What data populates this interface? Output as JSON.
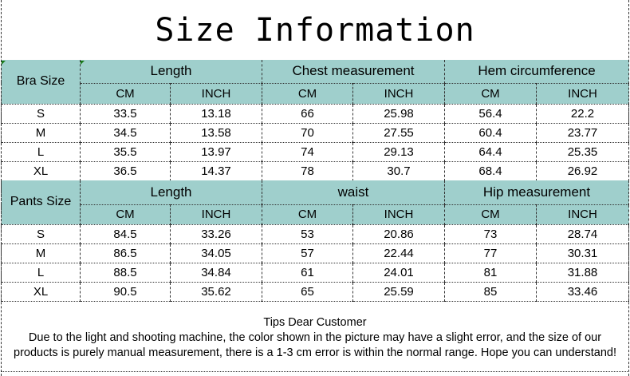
{
  "title": "Size Information",
  "tables": [
    {
      "size_label": "Bra Size",
      "groups": [
        "Length",
        "Chest measurement",
        "Hem circumference"
      ],
      "units": [
        "CM",
        "INCH",
        "CM",
        "INCH",
        "CM",
        "INCH"
      ],
      "rows": [
        [
          "S",
          "33.5",
          "13.18",
          "66",
          "25.98",
          "56.4",
          "22.2"
        ],
        [
          "M",
          "34.5",
          "13.58",
          "70",
          "27.55",
          "60.4",
          "23.77"
        ],
        [
          "L",
          "35.5",
          "13.97",
          "74",
          "29.13",
          "64.4",
          "25.35"
        ],
        [
          "XL",
          "36.5",
          "14.37",
          "78",
          "30.7",
          "68.4",
          "26.92"
        ]
      ]
    },
    {
      "size_label": "Pants Size",
      "groups": [
        "Length",
        "waist",
        "Hip measurement"
      ],
      "units": [
        "CM",
        "INCH",
        "CM",
        "INCH",
        "CM",
        "INCH"
      ],
      "rows": [
        [
          "S",
          "84.5",
          "33.26",
          "53",
          "20.86",
          "73",
          "28.74"
        ],
        [
          "M",
          "86.5",
          "34.05",
          "57",
          "22.44",
          "77",
          "30.31"
        ],
        [
          "L",
          "88.5",
          "34.84",
          "61",
          "24.01",
          "81",
          "31.88"
        ],
        [
          "XL",
          "90.5",
          "35.62",
          "65",
          "25.59",
          "85",
          "33.46"
        ]
      ]
    }
  ],
  "tips": {
    "heading": "Tips Dear Customer",
    "line1": "Due to the light and shooting machine, the color shown in the picture may have a slight error, and the size of our",
    "line2": "products is purely manual measurement, there is a 1-3 cm error is within the normal range. Hope you can understand!"
  },
  "colors": {
    "header_bg": "#9fcfcc"
  }
}
